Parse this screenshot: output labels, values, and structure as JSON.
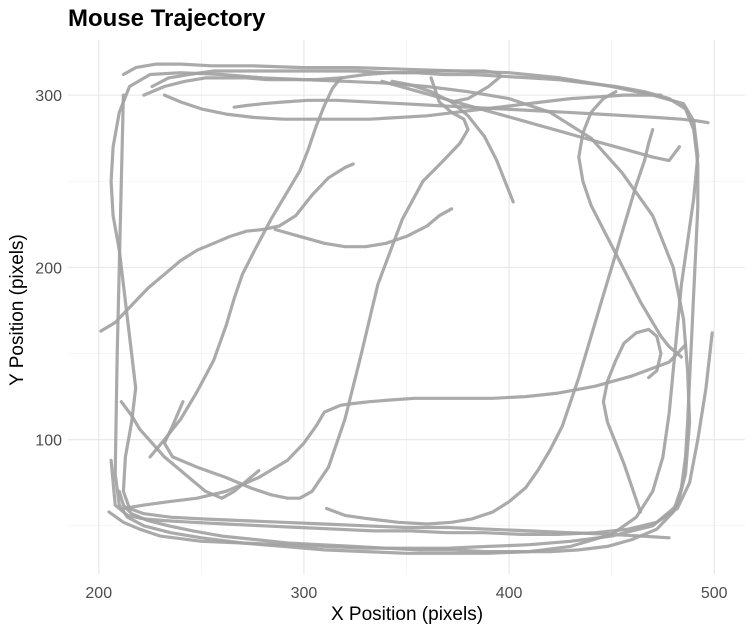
{
  "chart_data": {
    "type": "line",
    "title": "Mouse Trajectory",
    "xlabel": "X Position (pixels)",
    "ylabel": "Y Position (pixels)",
    "xlim": [
      185,
      515
    ],
    "ylim": [
      22,
      332
    ],
    "xticks": [
      200,
      300,
      400,
      500
    ],
    "yticks": [
      100,
      200,
      300
    ],
    "grid": true,
    "line_color": "#a3a3a3",
    "series": [
      {
        "x": [
          205,
          212,
          220,
          230,
          250,
          270,
          290,
          310,
          330,
          350,
          370,
          390,
          410,
          430,
          450,
          470,
          482,
          486,
          488,
          487,
          485,
          480,
          470,
          455,
          440,
          420,
          400,
          380,
          360,
          340,
          320,
          300,
          280,
          260,
          240,
          225,
          215,
          210,
          207,
          206,
          207,
          210,
          212,
          214,
          216,
          218,
          216,
          213,
          212,
          215,
          222,
          235,
          250,
          270,
          290,
          310,
          330,
          350,
          370,
          390,
          410,
          430,
          450,
          465,
          478
        ],
        "y": [
          58,
          52,
          48,
          44,
          41,
          40,
          39,
          38,
          37,
          37,
          37,
          38,
          39,
          41,
          44,
          50,
          62,
          80,
          110,
          140,
          170,
          200,
          230,
          255,
          275,
          290,
          298,
          302,
          305,
          307,
          308,
          309,
          310,
          312,
          313,
          312,
          305,
          290,
          270,
          250,
          230,
          210,
          190,
          170,
          150,
          130,
          110,
          90,
          70,
          60,
          57,
          55,
          54,
          53,
          52,
          51,
          50,
          49,
          49,
          48,
          47,
          46,
          45,
          44,
          43
        ]
      },
      {
        "x": [
          212,
          218,
          228,
          240,
          255,
          275,
          300,
          325,
          350,
          375,
          400,
          425,
          450,
          470,
          485,
          490,
          492,
          490,
          487,
          484,
          482,
          480,
          478,
          475,
          470,
          462,
          450,
          430,
          410,
          390,
          370,
          350,
          330,
          310,
          290,
          270,
          250,
          235,
          222,
          214,
          210,
          208,
          209,
          212
        ],
        "y": [
          312,
          316,
          318,
          318,
          317,
          317,
          316,
          316,
          315,
          314,
          313,
          310,
          305,
          300,
          295,
          285,
          265,
          240,
          215,
          190,
          165,
          140,
          115,
          90,
          70,
          55,
          45,
          38,
          35,
          34,
          34,
          34,
          35,
          36,
          38,
          40,
          43,
          46,
          50,
          55,
          62,
          80,
          150,
          300
        ]
      },
      {
        "x": [
          226,
          234,
          244,
          256,
          270,
          284,
          298,
          312,
          326,
          340,
          354,
          368,
          382,
          396,
          410,
          424,
          438,
          452,
          466,
          478,
          486,
          490,
          492,
          492,
          491,
          490,
          489,
          488,
          487,
          486,
          484,
          480,
          472,
          460,
          448,
          434,
          420,
          404,
          388,
          372,
          356,
          340,
          324,
          308,
          292,
          276,
          260,
          246,
          234,
          224,
          216,
          212,
          210
        ],
        "y": [
          305,
          310,
          312,
          314,
          314,
          314,
          314,
          314,
          314,
          313,
          313,
          312,
          312,
          311,
          310,
          309,
          307,
          305,
          302,
          298,
          292,
          280,
          260,
          235,
          210,
          185,
          160,
          135,
          110,
          90,
          72,
          58,
          48,
          42,
          38,
          36,
          35,
          35,
          35,
          36,
          36,
          37,
          38,
          39,
          40,
          42,
          44,
          47,
          50,
          53,
          57,
          62,
          70
        ]
      },
      {
        "x": [
          206,
          208,
          214,
          222,
          232,
          246,
          262,
          280,
          298,
          316,
          334,
          352,
          370,
          388,
          406,
          424,
          442,
          458,
          472,
          482,
          488,
          492,
          496,
          499
        ],
        "y": [
          88,
          62,
          56,
          54,
          53,
          52,
          51,
          50,
          49,
          48,
          47,
          47,
          46,
          46,
          45,
          45,
          46,
          48,
          52,
          60,
          75,
          100,
          130,
          162
        ]
      },
      {
        "x": [
          222,
          232,
          242,
          252,
          262,
          272,
          282,
          294,
          306,
          318,
          330,
          342,
          354,
          366,
          378,
          388,
          394,
          396,
          390,
          380,
          372
        ],
        "y": [
          300,
          305,
          308,
          310,
          310,
          310,
          309,
          309,
          309,
          310,
          312,
          313,
          313,
          314,
          314,
          314,
          313,
          311,
          305,
          298,
          296
        ]
      },
      {
        "x": [
          212,
          222,
          234,
          248,
          262,
          278,
          292,
          300,
          306,
          310,
          314,
          318,
          324,
          332,
          342,
          354,
          366,
          378,
          392,
          408,
          424,
          442,
          460,
          478,
          486
        ],
        "y": [
          60,
          62,
          64,
          66,
          70,
          78,
          88,
          98,
          108,
          116,
          118,
          120,
          121,
          122,
          123,
          124,
          124,
          124,
          124,
          125,
          127,
          131,
          137,
          145,
          155
        ]
      },
      {
        "x": [
          201,
          208,
          216,
          224,
          232,
          240,
          248,
          256,
          264,
          272,
          280,
          288,
          296,
          304,
          312,
          320,
          324
        ],
        "y": [
          163,
          168,
          178,
          188,
          196,
          204,
          210,
          214,
          218,
          221,
          222,
          224,
          230,
          242,
          252,
          258,
          260
        ]
      },
      {
        "x": [
          241,
          236,
          232,
          236,
          248,
          262,
          274,
          284,
          292,
          298,
          304,
          312,
          320,
          328,
          336,
          348,
          358,
          368,
          376,
          380,
          378,
          372,
          366,
          362
        ],
        "y": [
          122,
          108,
          98,
          90,
          84,
          78,
          72,
          68,
          66,
          66,
          70,
          84,
          112,
          150,
          190,
          228,
          250,
          262,
          272,
          280,
          286,
          290,
          296,
          310
        ]
      },
      {
        "x": [
          225,
          232,
          240,
          248,
          256,
          262,
          266,
          270,
          276,
          284,
          292,
          298,
          302,
          306,
          310,
          314,
          318
        ],
        "y": [
          90,
          100,
          112,
          128,
          146,
          166,
          182,
          196,
          210,
          228,
          244,
          256,
          268,
          282,
          294,
          304,
          310
        ]
      },
      {
        "x": [
          211,
          216,
          220,
          226,
          232,
          240,
          246,
          252,
          260,
          266,
          272,
          278
        ],
        "y": [
          122,
          114,
          106,
          98,
          90,
          82,
          76,
          70,
          66,
          70,
          76,
          82
        ]
      },
      {
        "x": [
          266,
          272,
          280,
          290,
          302,
          316,
          332,
          348,
          364,
          380,
          396,
          412,
          428,
          444,
          458,
          472,
          484,
          492,
          497
        ],
        "y": [
          293,
          294,
          295,
          296,
          297,
          297,
          296,
          295,
          294,
          293,
          292,
          291,
          290,
          289,
          288,
          287,
          286,
          285,
          284
        ]
      },
      {
        "x": [
          338,
          350,
          362,
          374,
          386,
          398,
          410,
          422,
          434,
          446,
          458,
          470,
          478,
          483
        ],
        "y": [
          308,
          304,
          300,
          296,
          292,
          288,
          284,
          280,
          276,
          272,
          268,
          264,
          262,
          270
        ]
      },
      {
        "x": [
          311,
          320,
          332,
          346,
          360,
          372,
          382,
          392,
          400,
          408,
          414,
          420,
          426,
          430,
          434,
          438,
          442,
          446,
          450,
          454,
          458,
          462,
          466,
          468,
          470
        ],
        "y": [
          60,
          56,
          54,
          52,
          51,
          52,
          54,
          58,
          64,
          72,
          82,
          94,
          108,
          122,
          136,
          152,
          168,
          184,
          200,
          216,
          232,
          248,
          262,
          272,
          280
        ]
      },
      {
        "x": [
          452,
          446,
          440,
          436,
          434,
          436,
          440,
          446,
          452,
          458,
          464,
          470,
          474,
          478,
          482,
          484
        ],
        "y": [
          302,
          298,
          290,
          278,
          264,
          250,
          236,
          222,
          208,
          194,
          180,
          168,
          160,
          154,
          150,
          148
        ]
      },
      {
        "x": [
          232,
          240,
          250,
          262,
          276,
          290,
          304,
          318,
          332,
          346,
          360,
          374,
          388,
          402,
          416,
          430,
          444,
          456,
          466,
          474
        ],
        "y": [
          300,
          296,
          292,
          289,
          287,
          286,
          286,
          286,
          286,
          287,
          288,
          290,
          292,
          294,
          296,
          298,
          299,
          300,
          300,
          300
        ]
      },
      {
        "x": [
          464,
          460,
          456,
          452,
          448,
          446,
          448,
          452,
          456,
          462,
          468,
          472,
          474,
          472,
          468
        ],
        "y": [
          58,
          72,
          86,
          98,
          110,
          122,
          134,
          146,
          156,
          162,
          164,
          160,
          150,
          140,
          136
        ]
      },
      {
        "x": [
          343,
          352,
          362,
          372,
          380,
          388,
          394,
          398,
          402
        ],
        "y": [
          308,
          306,
          302,
          296,
          288,
          276,
          262,
          250,
          238
        ]
      },
      {
        "x": [
          286,
          298,
          310,
          320,
          330,
          340,
          350,
          360,
          366,
          372
        ],
        "y": [
          222,
          218,
          214,
          212,
          212,
          214,
          218,
          224,
          230,
          234
        ]
      }
    ]
  }
}
